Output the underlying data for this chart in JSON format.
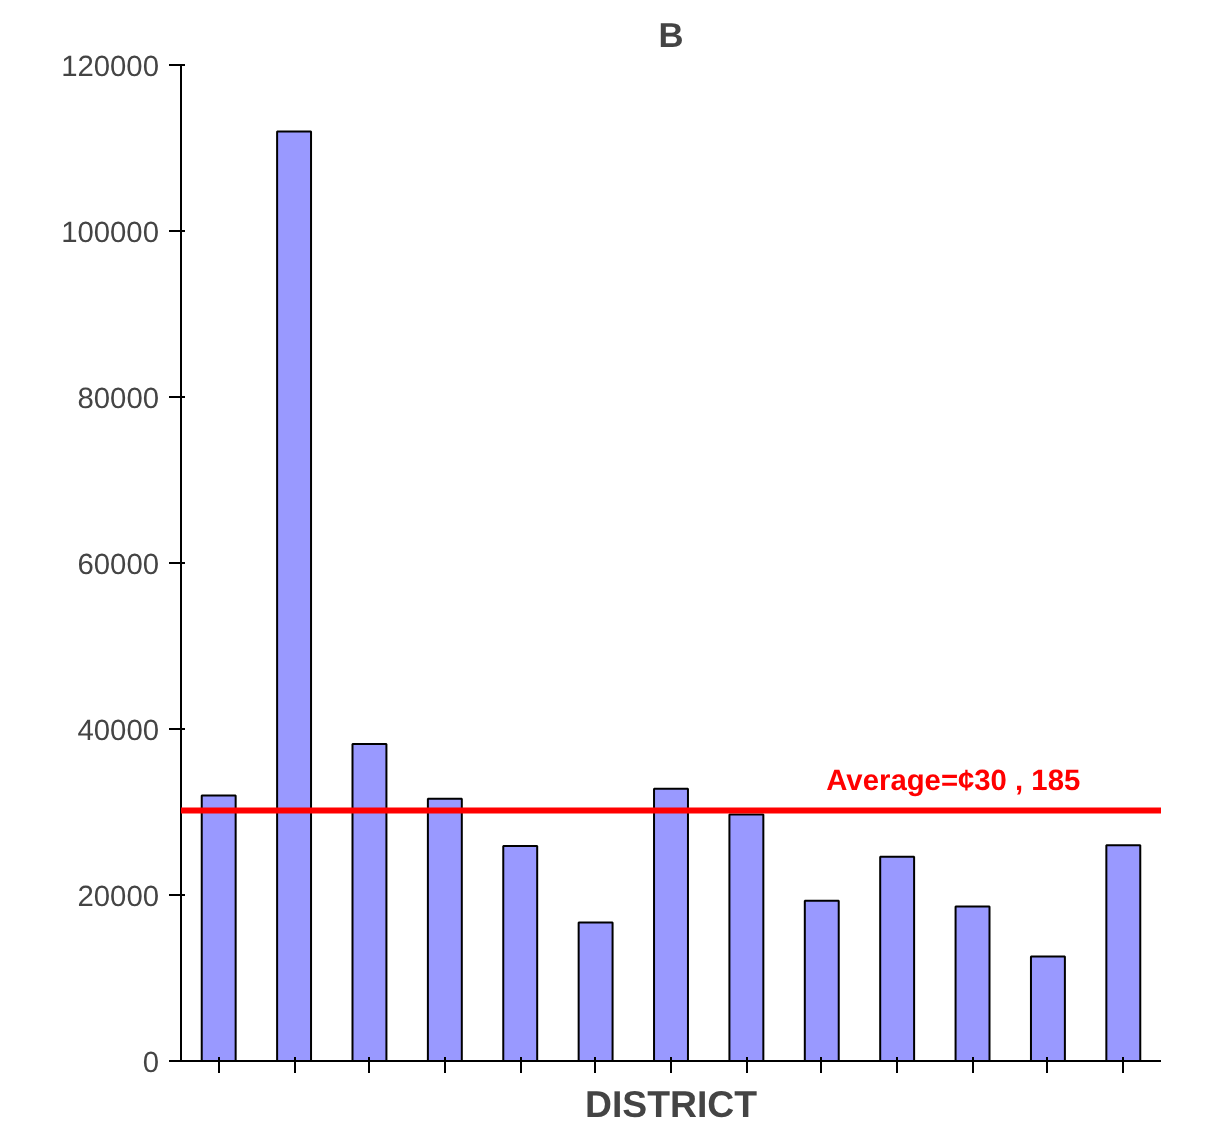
{
  "chart_data": {
    "type": "bar",
    "title": "B",
    "xlabel": "DISTRICT",
    "categories": [
      null,
      null,
      null,
      null,
      null,
      null,
      null,
      null,
      null,
      null,
      null,
      null,
      null
    ],
    "values": [
      32000,
      112000,
      38200,
      31600,
      25900,
      16700,
      32800,
      29700,
      19300,
      24600,
      18600,
      12600,
      26000
    ],
    "color": "#9999ff",
    "ylim": [
      0,
      120000
    ],
    "yticks": [
      0,
      20000,
      40000,
      60000,
      80000,
      100000,
      120000
    ],
    "grid": false,
    "ref_lines": [
      {
        "axis": "y",
        "value": 30185,
        "label": "Average=¢30 , 185",
        "color": "#ff0000"
      }
    ]
  }
}
